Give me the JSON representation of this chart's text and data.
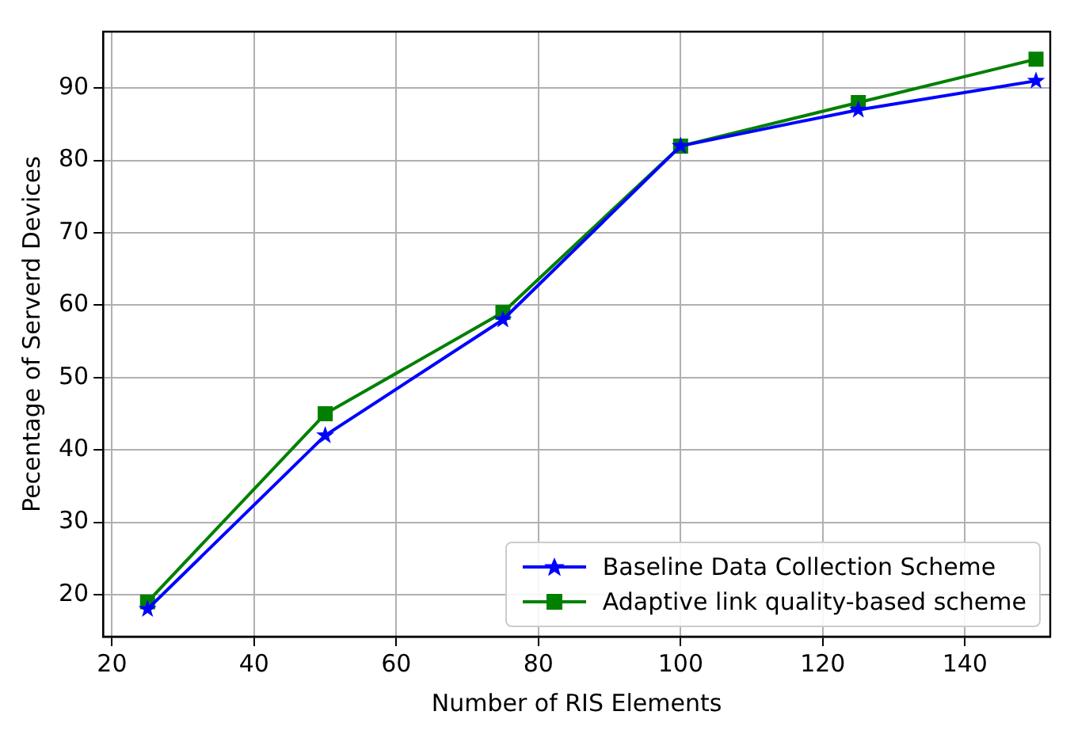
{
  "chart_data": {
    "type": "line",
    "xlabel": "Number of RIS Elements",
    "ylabel": "Pecentage of Serverd Devices",
    "x": [
      25,
      50,
      75,
      100,
      125,
      150
    ],
    "series": [
      {
        "name": "Baseline Data Collection Scheme",
        "color": "#0000ff",
        "marker": "star",
        "values": [
          18,
          42,
          58,
          82,
          87,
          91
        ]
      },
      {
        "name": "Adaptive link quality-based scheme",
        "color": "#008000",
        "marker": "square",
        "values": [
          19,
          45,
          59,
          82,
          88,
          94
        ]
      }
    ],
    "xlim": [
      18.75,
      152
    ],
    "xticks": [
      20,
      40,
      60,
      80,
      100,
      120,
      140
    ],
    "ylim": [
      14.2,
      97.8
    ],
    "yticks": [
      20,
      30,
      40,
      50,
      60,
      70,
      80,
      90
    ],
    "grid": true,
    "legend": "bottom right",
    "line_style": "solid"
  }
}
